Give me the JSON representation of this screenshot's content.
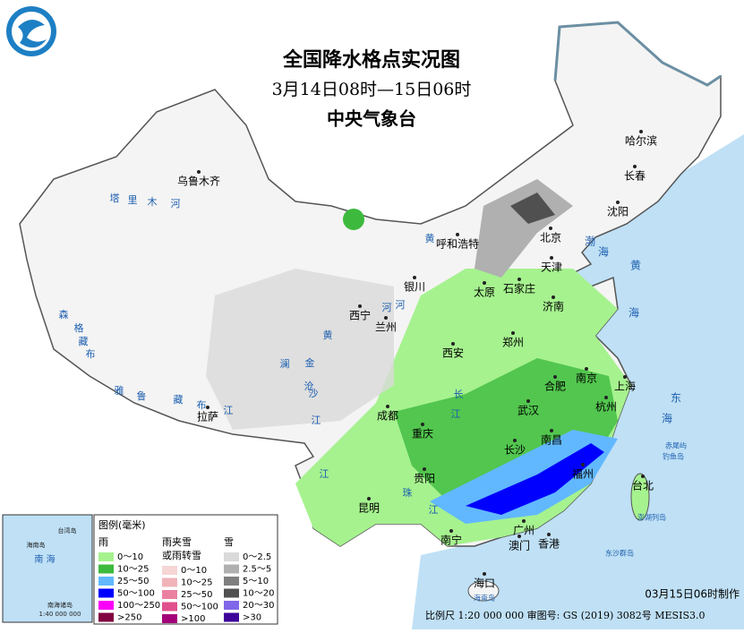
{
  "header": {
    "title": "全国降水格点实况图",
    "subtitle": "3月14日08时—15日06时",
    "agency": "中央气象台"
  },
  "cities": [
    "乌鲁木齐",
    "哈尔滨",
    "长春",
    "沈阳",
    "呼和浩特",
    "北京",
    "天津",
    "太原",
    "石家庄",
    "银川",
    "西宁",
    "兰州",
    "济南",
    "郑州",
    "西安",
    "合肥",
    "南京",
    "上海",
    "武汉",
    "杭州",
    "成都",
    "重庆",
    "长沙",
    "南昌",
    "拉萨",
    "贵阳",
    "福州",
    "台北",
    "昆明",
    "南宁",
    "广州",
    "澳门",
    "香港",
    "海口"
  ],
  "rivers": [
    "塔",
    "里",
    "木",
    "河",
    "黄",
    "河",
    "黄",
    "河",
    "长",
    "江",
    "雅",
    "鲁",
    "藏",
    "布",
    "江",
    "森",
    "格",
    "藏",
    "布",
    "澜",
    "沧",
    "江",
    "金",
    "沙",
    "江",
    "珠",
    "江"
  ],
  "seas": [
    "渤",
    "海",
    "黄",
    "海",
    "东",
    "海",
    "赤尾屿",
    "钓鱼岛",
    "澎湖列岛",
    "东沙群岛",
    "海南岛"
  ],
  "inset": {
    "labels": [
      "台湾岛",
      "海南岛",
      "南 海",
      "南海诸岛",
      "1:40 000 000"
    ]
  },
  "legend": {
    "title": "图例(毫米)",
    "groups": [
      {
        "name": "雨",
        "items": [
          {
            "label": "0～10",
            "color": "#a6f28f"
          },
          {
            "label": "10～25",
            "color": "#3dba3d"
          },
          {
            "label": "25～50",
            "color": "#61b8ff"
          },
          {
            "label": "50～100",
            "color": "#0000fe"
          },
          {
            "label": "100～250",
            "color": "#fa00fa"
          },
          {
            "label": ">250",
            "color": "#800040"
          }
        ]
      },
      {
        "name": "雨夹雪",
        "note": "或雨转雪",
        "items": [
          {
            "label": "0～10",
            "color": "#f6d5d5"
          },
          {
            "label": "10～25",
            "color": "#f0b3b8"
          },
          {
            "label": "25～50",
            "color": "#ea80a0"
          },
          {
            "label": "50～100",
            "color": "#e0508c"
          },
          {
            "label": ">100",
            "color": "#a3007a"
          }
        ]
      },
      {
        "name": "雪",
        "items": [
          {
            "label": "0～2.5",
            "color": "#d9d9d9"
          },
          {
            "label": "2.5～5",
            "color": "#b0b0b0"
          },
          {
            "label": "5～10",
            "color": "#7f7f7f"
          },
          {
            "label": "10～20",
            "color": "#505050"
          },
          {
            "label": "20～30",
            "color": "#8066e8"
          },
          {
            "label": ">30",
            "color": "#3d0099"
          }
        ]
      }
    ]
  },
  "footer": {
    "made": "03月15日06时制作",
    "scale": "比例尺 1:20 000 000 审图号: GS (2019) 3082号 MESIS3.0"
  }
}
